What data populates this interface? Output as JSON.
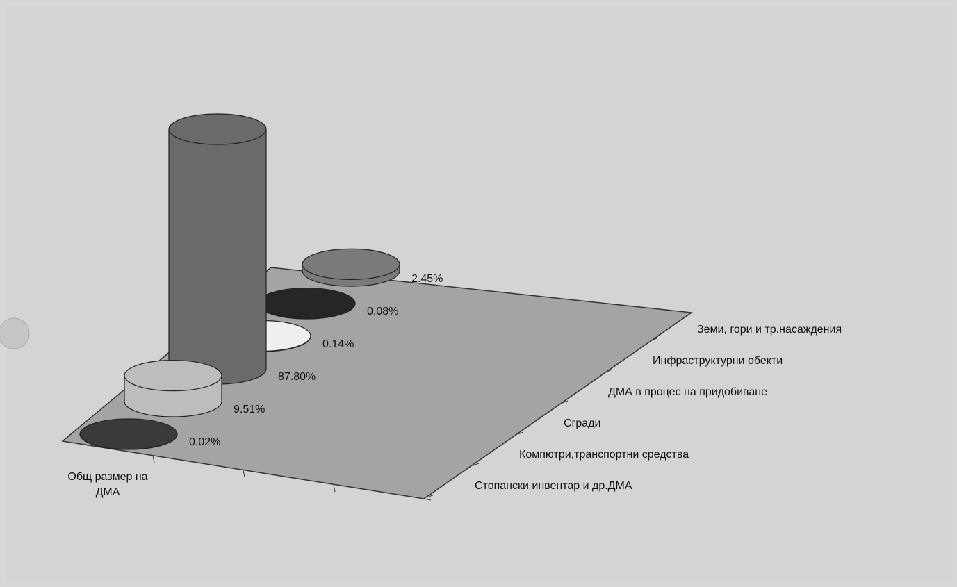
{
  "chart_data": {
    "type": "bar3d",
    "x_category": "Общ размер на ДМА",
    "categories": [
      "Стопански инвентар и др.ДМА",
      "Компютри,транспортни средства",
      "Сгради",
      "ДМА в процес на придобиване",
      "Инфраструктурни обекти",
      "Земи, гори и тр.насаждения"
    ],
    "values": [
      0.02,
      9.51,
      87.8,
      0.14,
      0.08,
      2.45
    ],
    "value_labels": [
      "0.02%",
      "9.51%",
      "87.80%",
      "0.14%",
      "0.08%",
      "2.45%"
    ],
    "colors": [
      "#3a3a3a",
      "#bdbdbd",
      "#6a6a6a",
      "#efefef",
      "#262626",
      "#7a7a7a"
    ]
  }
}
